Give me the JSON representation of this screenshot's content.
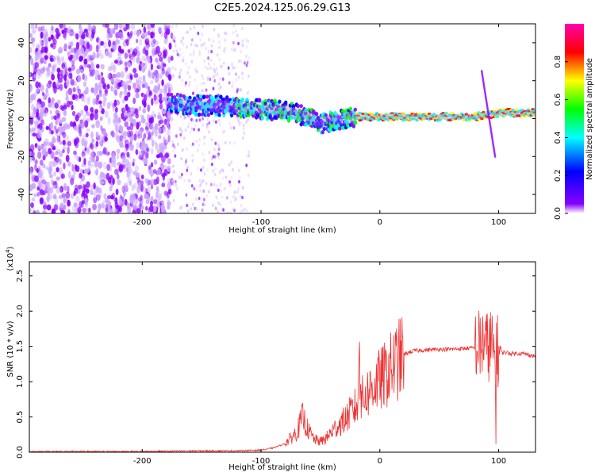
{
  "title": "C2E5.2024.125.06.29.G13",
  "chart_data": [
    {
      "type": "heatmap",
      "xlabel": "Height of straight line (km)",
      "ylabel": "Frequency (Hz)",
      "xlim": [
        -295,
        131
      ],
      "ylim": [
        -50,
        50
      ],
      "xticks": [
        -200,
        -100,
        0,
        100
      ],
      "yticks": [
        -40,
        -20,
        0,
        20,
        40
      ],
      "grid": false,
      "colorbar": {
        "label": "Normalized spectral amplitude",
        "range": [
          0.0,
          1.0
        ],
        "ticks": [
          0.0,
          0.2,
          0.4,
          0.6,
          0.8
        ],
        "colors": [
          "#ffffff",
          "#8800ff",
          "#0000ff",
          "#00ffff",
          "#00ff00",
          "#ffff00",
          "#ff0000",
          "#ff00aa"
        ]
      },
      "ridge": {
        "x": [
          -175,
          -150,
          -120,
          -100,
          -80,
          -60,
          -50,
          -40,
          -30,
          -20,
          -10,
          0,
          20,
          40,
          60,
          80,
          90,
          100,
          131
        ],
        "y": [
          8,
          7,
          6,
          5,
          4,
          1,
          -3,
          -1,
          0,
          1,
          1,
          1,
          1,
          1,
          1,
          1,
          2,
          3,
          3
        ]
      }
    },
    {
      "type": "line",
      "xlabel": "Height of straight line (km)",
      "ylabel": "SNR (10 * v/v)",
      "scale_label": "(x10",
      "scale_exp": "4",
      "scale_close": ")",
      "xlim": [
        -295,
        131
      ],
      "ylim": [
        0,
        2.7
      ],
      "xticks": [
        -200,
        -100,
        0,
        100
      ],
      "yticks": [
        0.0,
        0.5,
        1.0,
        1.5,
        2.0,
        2.5
      ],
      "grid": false,
      "series": [
        {
          "color": "#ee3333",
          "x": [
            -295,
            -250,
            -200,
            -150,
            -120,
            -100,
            -90,
            -80,
            -70,
            -65,
            -60,
            -55,
            -50,
            -45,
            -40,
            -35,
            -30,
            -25,
            -20,
            -15,
            -10,
            -5,
            0,
            5,
            10,
            15,
            20,
            25,
            30,
            40,
            50,
            60,
            70,
            80,
            85,
            88,
            90,
            92,
            95,
            98,
            100,
            105,
            110,
            120,
            131
          ],
          "y": [
            0.01,
            0.01,
            0.01,
            0.02,
            0.02,
            0.03,
            0.06,
            0.12,
            0.28,
            0.5,
            0.3,
            0.18,
            0.15,
            0.2,
            0.3,
            0.38,
            0.45,
            0.55,
            0.65,
            0.75,
            0.85,
            0.95,
            1.02,
            1.1,
            1.2,
            1.3,
            1.38,
            1.42,
            1.44,
            1.45,
            1.46,
            1.46,
            1.47,
            1.48,
            1.5,
            1.6,
            1.45,
            1.55,
            1.5,
            1.45,
            1.4,
            1.42,
            1.4,
            1.4,
            1.36
          ]
        }
      ]
    }
  ]
}
